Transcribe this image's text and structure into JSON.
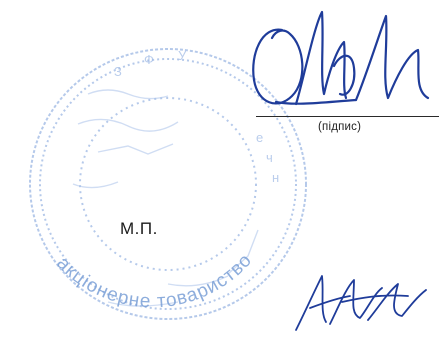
{
  "signature_block": {
    "caption": "(підпис)"
  },
  "stamp": {
    "label": "М.П.",
    "ring_text": "акціонерне товариство"
  },
  "colors": {
    "stamp_ink": "#7a9fd6",
    "signature_ink": "#1f3c9a",
    "line": "#2a2a2a"
  }
}
